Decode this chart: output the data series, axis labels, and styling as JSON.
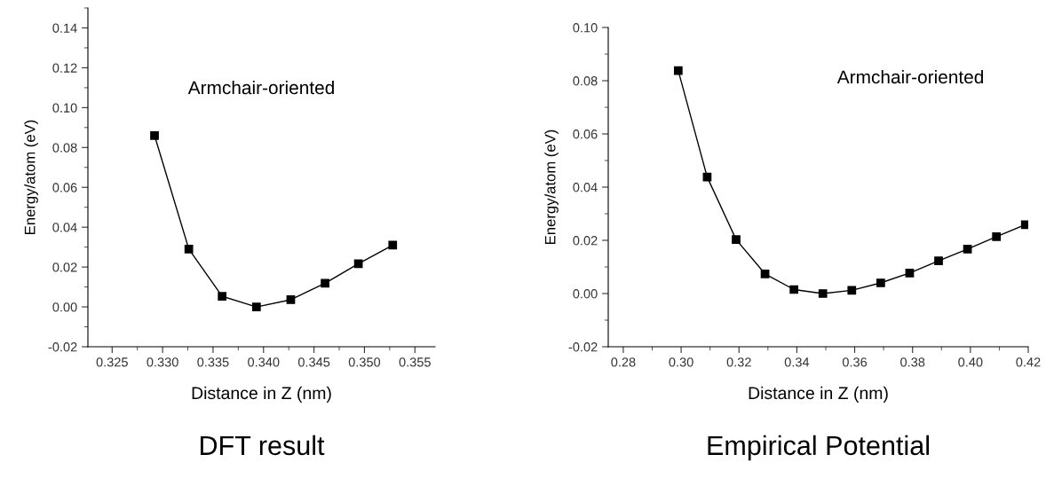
{
  "chart_data": [
    {
      "type": "line",
      "title": "DFT result",
      "xlabel": "Distance in Z (nm)",
      "ylabel": "Energy/atom (eV)",
      "annotations": [
        "Armchair-oriented"
      ],
      "marker": "square",
      "grid": false,
      "legend": false,
      "x": [
        0.3292,
        0.3326,
        0.3359,
        0.3393,
        0.3427,
        0.3461,
        0.3494,
        0.3528
      ],
      "series": [
        {
          "color": "#000000",
          "values": [
            0.086,
            0.029,
            0.0053,
            0.0,
            0.0036,
            0.0119,
            0.0217,
            0.031
          ]
        }
      ],
      "xlim": [
        0.3226,
        0.357
      ],
      "ylim": [
        -0.02,
        0.15
      ],
      "xticks": [
        {
          "value": 0.325,
          "label": "0.325"
        },
        {
          "value": 0.33,
          "label": "0.330"
        },
        {
          "value": 0.335,
          "label": "0.335"
        },
        {
          "value": 0.34,
          "label": "0.340"
        },
        {
          "value": 0.345,
          "label": "0.345"
        },
        {
          "value": 0.35,
          "label": "0.350"
        },
        {
          "value": 0.355,
          "label": "0.355"
        }
      ],
      "yticks": [
        {
          "value": -0.02,
          "label": "-0.02"
        },
        {
          "value": 0.0,
          "label": "0.00"
        },
        {
          "value": 0.02,
          "label": "0.02"
        },
        {
          "value": 0.04,
          "label": "0.04"
        },
        {
          "value": 0.06,
          "label": "0.06"
        },
        {
          "value": 0.08,
          "label": "0.08"
        },
        {
          "value": 0.1,
          "label": "0.10"
        },
        {
          "value": 0.12,
          "label": "0.12"
        },
        {
          "value": 0.14,
          "label": "0.14"
        }
      ]
    },
    {
      "type": "line",
      "title": "Empirical Potential",
      "xlabel": "Distance in Z (nm)",
      "ylabel": "Energy/atom (eV)",
      "annotations": [
        "Armchair-oriented"
      ],
      "marker": "square",
      "grid": false,
      "legend": false,
      "x": [
        0.299,
        0.309,
        0.319,
        0.329,
        0.339,
        0.349,
        0.359,
        0.369,
        0.379,
        0.389,
        0.399,
        0.409,
        0.419
      ],
      "series": [
        {
          "color": "#000000",
          "values": [
            0.0838,
            0.0438,
            0.0203,
            0.0074,
            0.0015,
            0.0,
            0.0012,
            0.004,
            0.0077,
            0.0123,
            0.0167,
            0.0214,
            0.0259
          ]
        }
      ],
      "xlim": [
        0.2748,
        0.42
      ],
      "ylim": [
        -0.02,
        0.1
      ],
      "xticks": [
        {
          "value": 0.28,
          "label": "0.28"
        },
        {
          "value": 0.3,
          "label": "0.30"
        },
        {
          "value": 0.32,
          "label": "0.32"
        },
        {
          "value": 0.34,
          "label": "0.34"
        },
        {
          "value": 0.36,
          "label": "0.36"
        },
        {
          "value": 0.38,
          "label": "0.38"
        },
        {
          "value": 0.4,
          "label": "0.40"
        },
        {
          "value": 0.42,
          "label": "0.42"
        }
      ],
      "yticks": [
        {
          "value": -0.02,
          "label": "-0.02"
        },
        {
          "value": 0.0,
          "label": "0.00"
        },
        {
          "value": 0.02,
          "label": "0.02"
        },
        {
          "value": 0.04,
          "label": "0.04"
        },
        {
          "value": 0.06,
          "label": "0.06"
        },
        {
          "value": 0.08,
          "label": "0.08"
        },
        {
          "value": 0.1,
          "label": "0.10"
        }
      ]
    }
  ]
}
